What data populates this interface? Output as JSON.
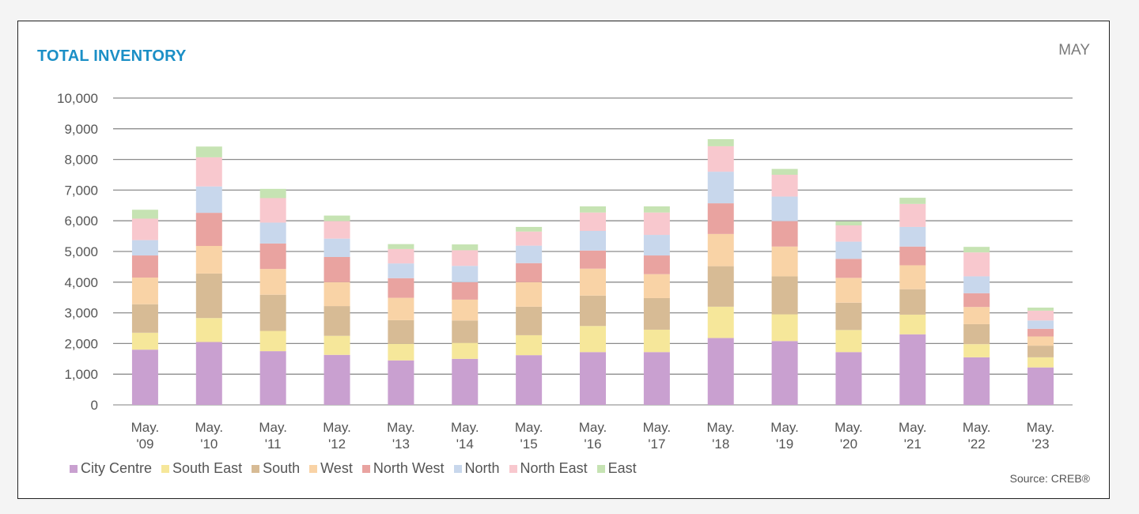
{
  "header": {
    "title": "TOTAL INVENTORY",
    "period": "MAY"
  },
  "footer": {
    "source": "Source: CREB®"
  },
  "chart_data": {
    "type": "bar",
    "stacked": true,
    "title": "TOTAL INVENTORY",
    "xlabel": "",
    "ylabel": "",
    "ylim": [
      0,
      10000
    ],
    "y_ticks": [
      0,
      1000,
      2000,
      3000,
      4000,
      5000,
      6000,
      7000,
      8000,
      9000,
      10000
    ],
    "y_tick_labels": [
      "0",
      "1,000",
      "2,000",
      "3,000",
      "4,000",
      "5,000",
      "6,000",
      "7,000",
      "8,000",
      "9,000",
      "10,000"
    ],
    "grid": true,
    "legend_position": "bottom-left",
    "categories": [
      [
        "May.",
        "'09"
      ],
      [
        "May.",
        "'10"
      ],
      [
        "May.",
        "'11"
      ],
      [
        "May.",
        "'12"
      ],
      [
        "May.",
        "'13"
      ],
      [
        "May.",
        "'14"
      ],
      [
        "May.",
        "'15"
      ],
      [
        "May.",
        "'16"
      ],
      [
        "May.",
        "'17"
      ],
      [
        "May.",
        "'18"
      ],
      [
        "May.",
        "'19"
      ],
      [
        "May.",
        "'20"
      ],
      [
        "May.",
        "'21"
      ],
      [
        "May.",
        "'22"
      ],
      [
        "May.",
        "'23"
      ]
    ],
    "series": [
      {
        "name": "City Centre",
        "color": "#c9a0d0",
        "values": [
          1800,
          2050,
          1750,
          1630,
          1450,
          1500,
          1620,
          1720,
          1720,
          2180,
          2080,
          1720,
          2300,
          1550,
          1220
        ]
      },
      {
        "name": "South East",
        "color": "#f6e79a",
        "values": [
          550,
          780,
          660,
          620,
          540,
          520,
          650,
          850,
          730,
          1020,
          870,
          720,
          640,
          430,
          330
        ]
      },
      {
        "name": "South",
        "color": "#d7bb95",
        "values": [
          930,
          1450,
          1180,
          970,
          770,
          730,
          930,
          990,
          1030,
          1320,
          1240,
          890,
          830,
          650,
          380
        ]
      },
      {
        "name": "West",
        "color": "#f9d3a6",
        "values": [
          870,
          900,
          840,
          780,
          730,
          680,
          800,
          880,
          780,
          1050,
          970,
          810,
          780,
          560,
          300
        ]
      },
      {
        "name": "North West",
        "color": "#e9a3a0",
        "values": [
          720,
          1080,
          830,
          820,
          640,
          570,
          620,
          590,
          610,
          1000,
          830,
          620,
          610,
          450,
          250
        ]
      },
      {
        "name": "North",
        "color": "#c8d7ec",
        "values": [
          500,
          860,
          680,
          600,
          480,
          530,
          570,
          640,
          670,
          1030,
          800,
          560,
          640,
          550,
          270
        ]
      },
      {
        "name": "North East",
        "color": "#f8c8ce",
        "values": [
          700,
          950,
          800,
          570,
          470,
          510,
          460,
          600,
          730,
          830,
          710,
          530,
          750,
          780,
          320
        ]
      },
      {
        "name": "East",
        "color": "#c6e3b3",
        "values": [
          290,
          350,
          300,
          180,
          160,
          190,
          150,
          200,
          200,
          230,
          190,
          130,
          200,
          180,
          100
        ]
      }
    ]
  }
}
